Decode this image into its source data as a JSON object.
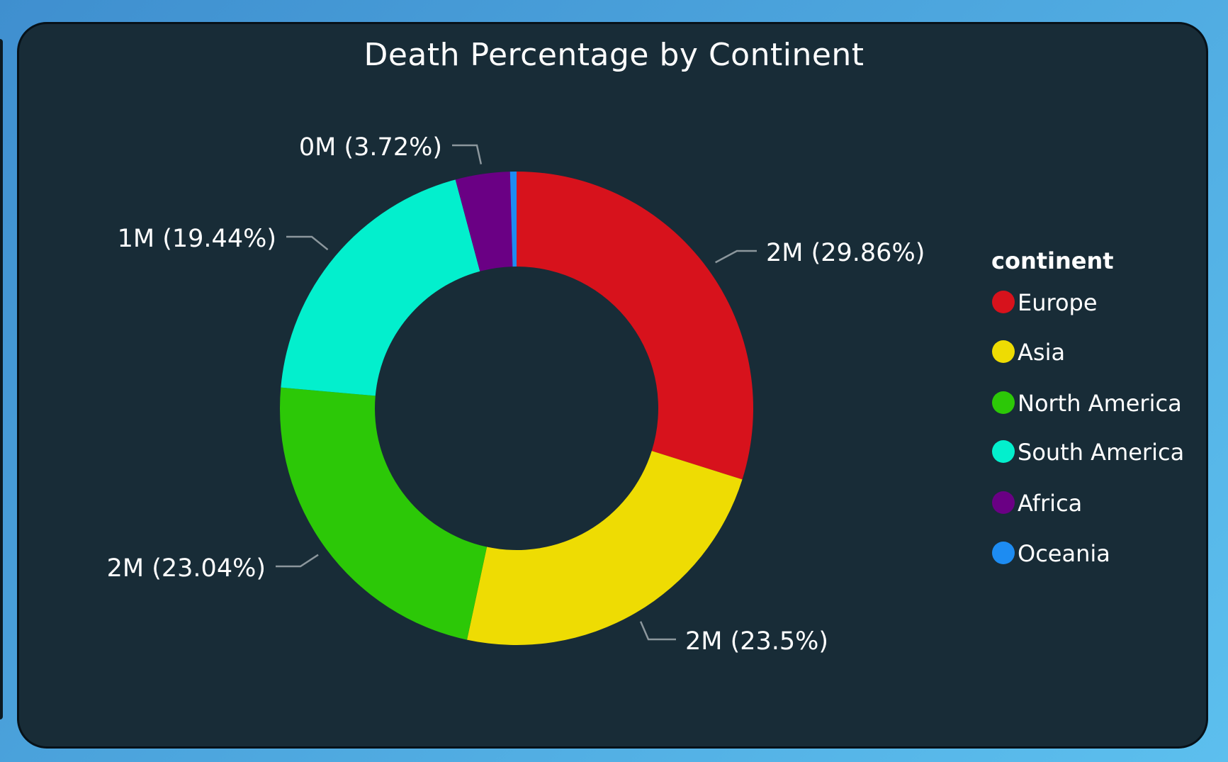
{
  "chart_data": {
    "type": "pie",
    "title": "Death Percentage by Continent",
    "legend_title": "continent",
    "legend_position": "right",
    "slices": [
      {
        "name": "Europe",
        "percent": 29.86,
        "label": "2M (29.86%)",
        "color": "#d7121c"
      },
      {
        "name": "Asia",
        "percent": 23.5,
        "label": "2M (23.5%)",
        "color": "#eedc03"
      },
      {
        "name": "North America",
        "percent": 23.04,
        "label": "2M (23.04%)",
        "color": "#2cc807"
      },
      {
        "name": "South America",
        "percent": 19.44,
        "label": "1M (19.44%)",
        "color": "#03efcd"
      },
      {
        "name": "Africa",
        "percent": 3.72,
        "label": "0M (3.72%)",
        "color": "#6a0084"
      },
      {
        "name": "Oceania",
        "percent": 0.44,
        "label": "",
        "color": "#1d8cf2"
      }
    ]
  }
}
